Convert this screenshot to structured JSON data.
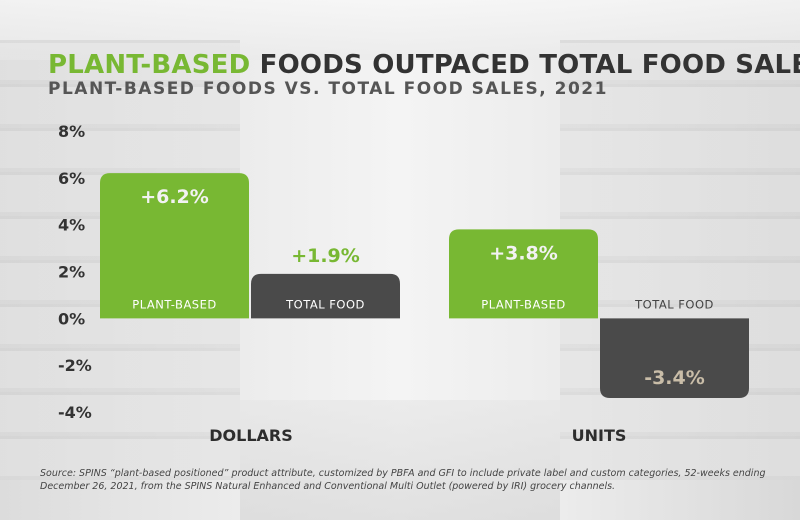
{
  "title": {
    "accent": "PLANT-BASED",
    "rest": " FOODS OUTPACED TOTAL FOOD SALES"
  },
  "subtitle": "PLANT-BASED FOODS VS. TOTAL FOOD SALES, 2021",
  "footnote": "Source: SPINS “plant-based positioned” product attribute, customized by PBFA and GFI to include private label and custom categories, 52-weeks ending December 26, 2021, from the SPINS Natural Enhanced and Conventional Multi Outlet (powered by IRI) grocery channels.",
  "colors": {
    "accent": "#78b833",
    "dark": "#4a4a4a",
    "axis_text": "#333333",
    "value_on_dark": "#c9bda8"
  },
  "chart_data": {
    "type": "bar",
    "yunit": "%",
    "ylim": [
      -4,
      8
    ],
    "yticks": [
      8,
      6,
      4,
      2,
      0,
      -2,
      -4
    ],
    "ytick_labels": [
      "8%",
      "6%",
      "4%",
      "2%",
      "0%",
      "-2%",
      "-4%"
    ],
    "grid": false,
    "groups": [
      {
        "label": "DOLLARS",
        "bars": [
          {
            "category": "PLANT-BASED",
            "value": 6.2,
            "value_label": "+6.2%",
            "color": "#78b833"
          },
          {
            "category": "TOTAL FOOD",
            "value": 1.9,
            "value_label": "+1.9%",
            "color": "#4a4a4a"
          }
        ]
      },
      {
        "label": "UNITS",
        "bars": [
          {
            "category": "PLANT-BASED",
            "value": 3.8,
            "value_label": "+3.8%",
            "color": "#78b833"
          },
          {
            "category": "TOTAL FOOD",
            "value": -3.4,
            "value_label": "-3.4%",
            "color": "#4a4a4a"
          }
        ]
      }
    ]
  }
}
